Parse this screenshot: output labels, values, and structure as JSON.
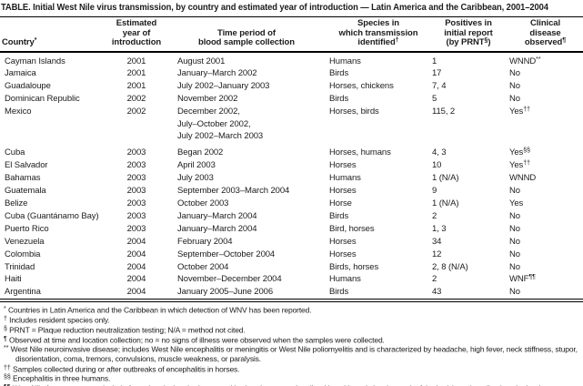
{
  "title": "TABLE. Initial West Nile virus transmission, by country and estimated year of introduction — Latin America and the Caribbean, 2001–2004",
  "table": {
    "columns": [
      {
        "id": "country",
        "lines": [
          [
            "Country",
            "*"
          ]
        ]
      },
      {
        "id": "year",
        "lines": [
          [
            "Estimated"
          ],
          [
            "year of"
          ],
          [
            "introduction"
          ]
        ]
      },
      {
        "id": "period",
        "lines": [
          [
            "Time period of"
          ],
          [
            "blood sample collection"
          ]
        ]
      },
      {
        "id": "species",
        "lines": [
          [
            "Species in"
          ],
          [
            "which transmission"
          ],
          [
            "identified",
            "†"
          ]
        ]
      },
      {
        "id": "positives",
        "lines": [
          [
            "Positives in"
          ],
          [
            "initial report"
          ],
          [
            "(by PRNT",
            "§",
            ")"
          ]
        ]
      },
      {
        "id": "disease",
        "lines": [
          [
            "Clinical"
          ],
          [
            "disease"
          ],
          [
            "observed",
            "¶"
          ]
        ]
      }
    ],
    "rows": [
      {
        "country": "Cayman Islands",
        "year": "2001",
        "period_lines": [
          "August 2001"
        ],
        "species": "Humans",
        "positives": "1",
        "disease": [
          "WNND",
          "**"
        ]
      },
      {
        "country": "Jamaica",
        "year": "2001",
        "period_lines": [
          "January–March 2002"
        ],
        "species": "Birds",
        "positives": "17",
        "disease": [
          "No"
        ]
      },
      {
        "country": "Guadaloupe",
        "year": "2001",
        "period_lines": [
          "July 2002–January 2003"
        ],
        "species": "Horses, chickens",
        "positives": "7, 4",
        "disease": [
          "No"
        ]
      },
      {
        "country": "Dominican Republic",
        "year": "2002",
        "period_lines": [
          "November 2002"
        ],
        "species": "Birds",
        "positives": "5",
        "disease": [
          "No"
        ]
      },
      {
        "country": "Mexico",
        "year": "2002",
        "period_lines": [
          "December 2002,",
          "July–October 2002,",
          "July 2002–March 2003"
        ],
        "species": "Horses, birds",
        "positives": "115, 2",
        "disease": [
          "Yes",
          "††"
        ]
      },
      {
        "country": "Cuba",
        "year": "2003",
        "period_lines": [
          "Began 2002"
        ],
        "species": "Horses, humans",
        "positives": "4, 3",
        "disease": [
          "Yes",
          "§§"
        ]
      },
      {
        "country": "El Salvador",
        "year": "2003",
        "period_lines": [
          "April 2003"
        ],
        "species": "Horses",
        "positives": "10",
        "disease": [
          "Yes",
          "††"
        ]
      },
      {
        "country": "Bahamas",
        "year": "2003",
        "period_lines": [
          "July 2003"
        ],
        "species": "Humans",
        "positives": "1 (N/A)",
        "disease": [
          "WNND"
        ]
      },
      {
        "country": "Guatemala",
        "year": "2003",
        "period_lines": [
          "September 2003–March 2004"
        ],
        "species": "Horses",
        "positives": "9",
        "disease": [
          "No"
        ]
      },
      {
        "country": "Belize",
        "year": "2003",
        "period_lines": [
          "October 2003"
        ],
        "species": "Horse",
        "positives": "1 (N/A)",
        "disease": [
          "Yes"
        ]
      },
      {
        "country": "Cuba (Guantánamo Bay)",
        "year": "2003",
        "period_lines": [
          "January–March 2004"
        ],
        "species": "Birds",
        "positives": "2",
        "disease": [
          "No"
        ]
      },
      {
        "country": "Puerto Rico",
        "year": "2003",
        "period_lines": [
          "January–March 2004"
        ],
        "species": "Bird, horses",
        "positives": "1, 3",
        "disease": [
          "No"
        ]
      },
      {
        "country": "Venezuela",
        "year": "2004",
        "period_lines": [
          "February 2004"
        ],
        "species": "Horses",
        "positives": "34",
        "disease": [
          "No"
        ]
      },
      {
        "country": "Colombia",
        "year": "2004",
        "period_lines": [
          "September–October 2004"
        ],
        "species": "Horses",
        "positives": "12",
        "disease": [
          "No"
        ]
      },
      {
        "country": "Trinidad",
        "year": "2004",
        "period_lines": [
          "October 2004"
        ],
        "species": "Birds, horses",
        "positives": "2, 8 (N/A)",
        "disease": [
          "No"
        ]
      },
      {
        "country": "Haiti",
        "year": "2004",
        "period_lines": [
          "November–December 2004"
        ],
        "species": "Humans",
        "positives": "2",
        "disease": [
          "WNF",
          "¶¶"
        ]
      },
      {
        "country": "Argentina",
        "year": "2004",
        "period_lines": [
          "January 2005–June 2006"
        ],
        "species": "Birds",
        "positives": "43",
        "disease": [
          "No"
        ]
      }
    ]
  },
  "footnotes": [
    {
      "mark": "*",
      "text": "Countries in Latin America and the Caribbean in which detection of WNV has been reported."
    },
    {
      "mark": "†",
      "text": "Includes resident species only."
    },
    {
      "mark": "§",
      "text": "PRNT = Plaque reduction neutralization testing; N/A = method not cited."
    },
    {
      "mark": "¶",
      "text": "Observed at time and location collection; no = no signs of illness were observed when the samples were collected."
    },
    {
      "mark": "**",
      "text": "West Nile neuroinvasive disease; includes West Nile encephalitis or meningitis or West Nile poliomyelitis and is characterized by headache, high fever, neck stiffness, stupor, disorientation, coma, tremors, convulsions, muscle weakness, or paralysis."
    },
    {
      "mark": "††",
      "text": "Samples collected during or after outbreaks of encephalitis in horses."
    },
    {
      "mark": "§§",
      "text": "Encephalitis in three humans."
    },
    {
      "mark": "¶¶",
      "text": "West Nile fever; symptoms include fever, headache, tiredness, and body aches, occasionally with a skin rash (on the trunk of the body), and swollen lymph glands."
    }
  ]
}
